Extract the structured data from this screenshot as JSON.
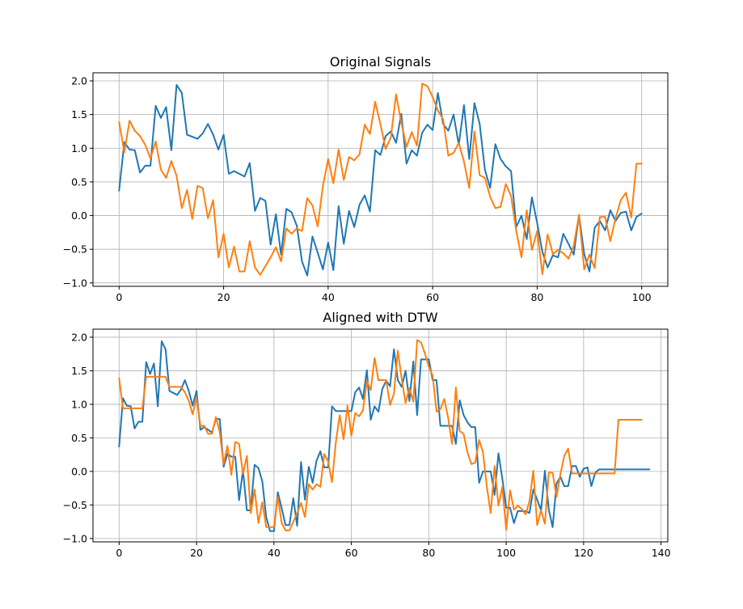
{
  "chart_data": [
    {
      "type": "line",
      "title": "Original Signals",
      "xlabel": "",
      "ylabel": "",
      "xlim": [
        -5,
        105
      ],
      "ylim": [
        -1.05,
        2.12
      ],
      "xticks": [
        0,
        20,
        40,
        60,
        80,
        100
      ],
      "yticks": [
        -1.0,
        -0.5,
        0.0,
        0.5,
        1.0,
        1.5,
        2.0
      ],
      "grid": true,
      "series": [
        {
          "color": "#1f77b4",
          "values": [
            0.37,
            1.09,
            0.98,
            0.97,
            0.64,
            0.74,
            0.74,
            1.63,
            1.45,
            1.61,
            0.97,
            1.94,
            1.82,
            1.2,
            1.17,
            1.14,
            1.22,
            1.36,
            1.2,
            0.98,
            1.2,
            0.62,
            0.66,
            0.62,
            0.58,
            0.78,
            0.07,
            0.26,
            0.22,
            -0.43,
            0.02,
            -0.58,
            0.1,
            0.05,
            -0.15,
            -0.68,
            -0.89,
            -0.31,
            -0.55,
            -0.8,
            -0.4,
            -0.81,
            0.14,
            -0.42,
            0.07,
            -0.17,
            0.16,
            0.3,
            0.06,
            0.97,
            0.9,
            1.18,
            1.25,
            1.08,
            1.51,
            0.77,
            0.97,
            0.89,
            1.23,
            1.35,
            1.27,
            1.82,
            1.36,
            1.26,
            1.5,
            1.05,
            1.64,
            0.84,
            1.67,
            1.36,
            0.68,
            0.41,
            1.06,
            0.84,
            0.73,
            0.66,
            -0.17,
            0.0,
            -0.35,
            0.27,
            -0.11,
            -0.54,
            -0.77,
            -0.59,
            -0.62,
            -0.27,
            -0.42,
            -0.58,
            0.01,
            -0.57,
            -0.83,
            -0.18,
            -0.08,
            -0.22,
            0.08,
            -0.08,
            0.04,
            0.06,
            -0.22,
            -0.02,
            0.03
          ]
        },
        {
          "color": "#ff7f0e",
          "values": [
            1.39,
            0.94,
            1.41,
            1.26,
            1.18,
            1.05,
            0.85,
            1.1,
            0.68,
            0.56,
            0.81,
            0.59,
            0.11,
            0.38,
            -0.05,
            0.44,
            0.41,
            -0.04,
            0.23,
            -0.62,
            -0.27,
            -0.77,
            -0.46,
            -0.83,
            -0.83,
            -0.38,
            -0.77,
            -0.88,
            -0.75,
            -0.62,
            -0.47,
            -0.68,
            -0.19,
            -0.27,
            -0.19,
            -0.23,
            0.26,
            0.15,
            -0.16,
            0.44,
            0.84,
            0.48,
            0.98,
            0.53,
            0.87,
            0.82,
            0.91,
            1.35,
            1.21,
            1.69,
            1.36,
            0.99,
            1.16,
            1.8,
            1.38,
            1.02,
            1.24,
            1.04,
            1.96,
            1.92,
            1.76,
            1.56,
            1.43,
            0.89,
            0.93,
            1.08,
            0.8,
            0.41,
            1.25,
            0.6,
            0.56,
            0.28,
            0.11,
            0.13,
            0.47,
            0.29,
            -0.23,
            -0.62,
            0.08,
            -0.51,
            -0.23,
            -0.87,
            -0.28,
            -0.57,
            -0.51,
            -0.56,
            -0.64,
            -0.45,
            0.01,
            -0.8,
            -0.58,
            -0.78,
            -0.02,
            -0.02,
            -0.38,
            -0.04,
            0.23,
            0.34,
            -0.03,
            0.77,
            0.77
          ]
        }
      ]
    },
    {
      "type": "line",
      "title": "Aligned with DTW",
      "xlabel": "",
      "ylabel": "",
      "xlim": [
        -6.75,
        141.75
      ],
      "ylim": [
        -1.05,
        2.12
      ],
      "xticks": [
        0,
        20,
        40,
        60,
        80,
        100,
        120,
        140
      ],
      "yticks": [
        -1.0,
        -0.5,
        0.0,
        0.5,
        1.0,
        1.5,
        2.0
      ],
      "grid": true,
      "series": [
        {
          "color": "#1f77b4",
          "values": [
            0.37,
            1.09,
            0.98,
            0.97,
            0.64,
            0.74,
            0.74,
            1.63,
            1.45,
            1.61,
            0.97,
            1.94,
            1.82,
            1.2,
            1.17,
            1.14,
            1.22,
            1.36,
            1.2,
            0.98,
            1.2,
            0.62,
            0.66,
            0.62,
            0.58,
            0.78,
            0.78,
            0.07,
            0.26,
            0.22,
            0.22,
            -0.43,
            0.02,
            -0.58,
            -0.58,
            0.1,
            0.05,
            -0.15,
            -0.68,
            -0.89,
            -0.89,
            -0.31,
            -0.55,
            -0.8,
            -0.8,
            -0.4,
            -0.81,
            0.14,
            -0.42,
            0.07,
            -0.17,
            0.16,
            0.3,
            0.06,
            0.06,
            0.97,
            0.9,
            0.9,
            0.9,
            0.9,
            0.9,
            1.18,
            1.25,
            1.08,
            1.51,
            0.77,
            0.97,
            0.89,
            1.23,
            1.35,
            1.27,
            1.82,
            1.36,
            1.26,
            1.5,
            1.05,
            1.64,
            0.84,
            1.67,
            1.67,
            1.67,
            1.36,
            1.36,
            0.68,
            0.68,
            0.68,
            0.68,
            0.41,
            1.06,
            0.84,
            0.73,
            0.66,
            0.66,
            -0.17,
            0.0,
            0.0,
            0.0,
            -0.35,
            0.27,
            -0.11,
            -0.54,
            -0.54,
            -0.77,
            -0.59,
            -0.59,
            -0.59,
            -0.62,
            -0.27,
            -0.42,
            -0.58,
            0.01,
            -0.57,
            -0.83,
            -0.18,
            -0.08,
            -0.22,
            -0.22,
            0.08,
            0.08,
            -0.08,
            0.04,
            0.06,
            -0.22,
            -0.02,
            0.03,
            0.03,
            0.03,
            0.03,
            0.03,
            0.03,
            0.03,
            0.03,
            0.03,
            0.03,
            0.03,
            0.03,
            0.03,
            0.03
          ]
        },
        {
          "color": "#ff7f0e",
          "values": [
            1.39,
            0.94,
            0.94,
            0.94,
            0.94,
            0.94,
            0.94,
            1.41,
            1.41,
            1.41,
            1.41,
            1.41,
            1.41,
            1.26,
            1.26,
            1.26,
            1.26,
            1.18,
            1.05,
            0.85,
            1.1,
            0.68,
            0.68,
            0.56,
            0.56,
            0.81,
            0.59,
            0.11,
            0.38,
            -0.05,
            0.44,
            0.41,
            -0.04,
            0.23,
            -0.62,
            -0.27,
            -0.77,
            -0.46,
            -0.83,
            -0.83,
            -0.83,
            -0.38,
            -0.77,
            -0.88,
            -0.88,
            -0.75,
            -0.62,
            -0.47,
            -0.68,
            -0.19,
            -0.27,
            -0.19,
            -0.23,
            0.26,
            0.15,
            -0.16,
            0.44,
            0.84,
            0.48,
            0.98,
            0.53,
            0.87,
            0.82,
            0.91,
            1.35,
            1.21,
            1.69,
            1.36,
            1.36,
            1.36,
            0.99,
            1.16,
            1.8,
            1.38,
            1.02,
            1.24,
            1.04,
            1.96,
            1.92,
            1.76,
            1.56,
            1.43,
            0.89,
            0.93,
            1.08,
            0.8,
            0.41,
            1.25,
            0.6,
            0.56,
            0.28,
            0.11,
            0.13,
            0.47,
            0.29,
            -0.23,
            -0.62,
            0.08,
            -0.51,
            -0.23,
            -0.87,
            -0.28,
            -0.57,
            -0.51,
            -0.56,
            -0.64,
            -0.45,
            0.01,
            -0.8,
            -0.58,
            -0.78,
            -0.02,
            -0.02,
            -0.38,
            -0.04,
            0.23,
            0.34,
            -0.03,
            -0.03,
            -0.03,
            -0.03,
            -0.03,
            -0.03,
            -0.03,
            -0.03,
            -0.03,
            -0.03,
            -0.03,
            -0.03,
            0.77,
            0.77,
            0.77,
            0.77,
            0.77,
            0.77,
            0.77
          ]
        }
      ]
    }
  ]
}
